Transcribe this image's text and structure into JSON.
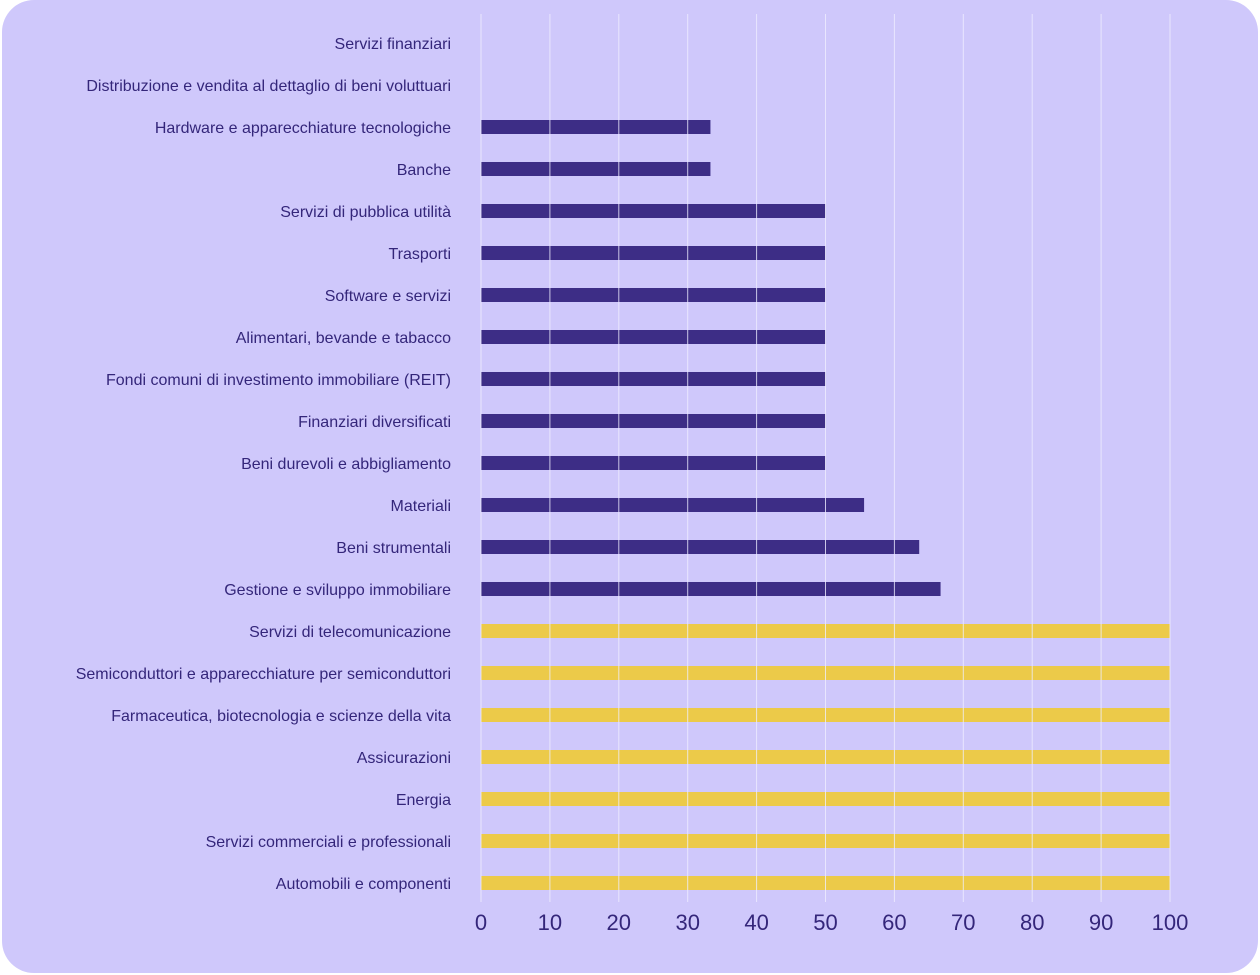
{
  "colors": {
    "background": "#cfc8fb",
    "bar_low": "#3d2d86",
    "bar_full": "#ecca49",
    "text": "#34267a",
    "grid": "#efedff"
  },
  "chart_data": {
    "type": "bar",
    "orientation": "horizontal",
    "title": "",
    "xlabel": "",
    "ylabel": "",
    "xlim": [
      0,
      100
    ],
    "ticks": [
      "0",
      "10",
      "20",
      "30",
      "40",
      "50",
      "60",
      "70",
      "80",
      "90",
      "100"
    ],
    "grid": true,
    "categories": [
      "Servizi finanziari",
      "Distribuzione e vendita al dettaglio di beni voluttuari",
      "Hardware e apparecchiature tecnologiche",
      "Banche",
      "Servizi di pubblica utilità",
      "Trasporti",
      "Software e servizi",
      "Alimentari, bevande e tabacco",
      "Fondi comuni di investimento immobiliare (REIT)",
      "Finanziari diversificati",
      "Beni durevoli e abbigliamento",
      "Materiali",
      "Beni strumentali",
      "Gestione e sviluppo immobiliare",
      "Servizi di telecomunicazione",
      "Semiconduttori e apparecchiature per semiconduttori",
      "Farmaceutica, biotecnologia e scienze della vita",
      "Assicurazioni",
      "Energia",
      "Servizi commerciali e professionali",
      "Automobili e componenti"
    ],
    "values": [
      0,
      0,
      33.3,
      33.3,
      50,
      50,
      50,
      50,
      50,
      50,
      50,
      55.6,
      63.6,
      66.7,
      100,
      100,
      100,
      100,
      100,
      100,
      100
    ]
  }
}
